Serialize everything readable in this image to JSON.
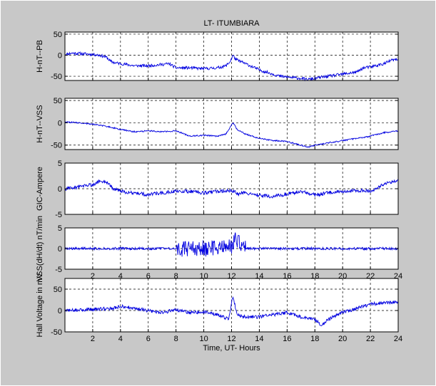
{
  "figure": {
    "background": "#c8c8c8",
    "axes_background": "#ffffff",
    "line_color": "#0000e0"
  },
  "chart_data": [
    {
      "type": "line",
      "title": "LT- ITUMBIARA",
      "ylabel": "H-nT--PB",
      "xlabel": "",
      "xlim": [
        0,
        24
      ],
      "ylim": [
        -60,
        55
      ],
      "yticks": [
        -50,
        0,
        50
      ],
      "xticks": [
        2,
        4,
        6,
        8,
        10,
        12,
        14,
        16,
        18,
        20,
        22,
        24
      ],
      "show_xtick_labels": false,
      "grid": "dashed",
      "noise": 3.5,
      "x": [
        0,
        0.5,
        1,
        1.5,
        2,
        2.5,
        3,
        3.3,
        3.6,
        4,
        5,
        6,
        7,
        7.5,
        8,
        9,
        10,
        11,
        11.6,
        11.9,
        12.1,
        12.3,
        13,
        14,
        15,
        15.5,
        16,
        17,
        17.5,
        18,
        18.5,
        19,
        20,
        21,
        21.5,
        22,
        23,
        23.5,
        24
      ],
      "values": [
        2,
        5,
        4,
        3,
        2,
        0,
        -5,
        -15,
        -18,
        -20,
        -25,
        -25,
        -22,
        -20,
        -30,
        -30,
        -32,
        -30,
        -25,
        -15,
        0,
        -10,
        -20,
        -35,
        -45,
        -50,
        -52,
        -55,
        -58,
        -55,
        -52,
        -50,
        -45,
        -40,
        -30,
        -28,
        -20,
        -12,
        -10
      ]
    },
    {
      "type": "line",
      "title": "",
      "ylabel": "H-nT--VSS",
      "xlabel": "",
      "xlim": [
        0,
        24
      ],
      "ylim": [
        -60,
        55
      ],
      "yticks": [
        -50,
        0,
        50
      ],
      "xticks": [
        2,
        4,
        6,
        8,
        10,
        12,
        14,
        16,
        18,
        20,
        22,
        24
      ],
      "show_xtick_labels": false,
      "grid": "dashed",
      "noise": 1.5,
      "x": [
        0,
        1,
        2,
        3,
        4,
        5,
        6,
        7,
        8,
        9,
        10,
        11,
        11.6,
        12.1,
        12.4,
        13,
        14,
        15,
        16,
        17,
        17.5,
        18,
        19,
        20,
        21,
        22,
        23,
        24
      ],
      "values": [
        2,
        0,
        -3,
        -8,
        -15,
        -20,
        -18,
        -20,
        -18,
        -30,
        -28,
        -30,
        -25,
        0,
        -15,
        -25,
        -35,
        -40,
        -42,
        -50,
        -55,
        -50,
        -45,
        -40,
        -35,
        -30,
        -22,
        -18
      ]
    },
    {
      "type": "line",
      "title": "",
      "ylabel": "GIC-Ampere",
      "xlabel": "",
      "xlim": [
        0,
        24
      ],
      "ylim": [
        -5,
        5
      ],
      "yticks": [
        -5,
        0,
        5
      ],
      "xticks": [
        2,
        4,
        6,
        8,
        10,
        12,
        14,
        16,
        18,
        20,
        22,
        24
      ],
      "show_xtick_labels": false,
      "grid": "dashed",
      "noise": 0.35,
      "x": [
        0,
        1,
        2,
        2.5,
        3,
        3.5,
        4,
        5,
        6,
        7,
        8,
        9,
        10,
        11,
        12,
        12.5,
        13,
        14,
        15,
        16,
        17,
        18,
        19,
        20,
        21,
        22,
        23,
        24
      ],
      "values": [
        0,
        0.3,
        0.8,
        1.5,
        1.2,
        0,
        -0.5,
        -0.8,
        -1.2,
        -0.8,
        -0.5,
        -0.5,
        -0.8,
        -0.5,
        -0.3,
        -1,
        -0.8,
        -1.3,
        -1.5,
        -1,
        -0.5,
        -1.2,
        -0.8,
        -0.5,
        -0.3,
        -0.5,
        1,
        1.5
      ]
    },
    {
      "type": "line",
      "title": "",
      "ylabel": "VSS(dH/dt) nT/min",
      "xlabel": "",
      "xlim": [
        0,
        24
      ],
      "ylim": [
        -5,
        5
      ],
      "yticks": [
        -5,
        0,
        5
      ],
      "xticks": [
        2,
        4,
        6,
        8,
        10,
        12,
        14,
        16,
        18,
        20,
        22,
        24
      ],
      "xtick_labels": [
        "2",
        "4",
        "6",
        "8",
        "10",
        "12",
        "14",
        "16",
        "18",
        "20",
        "22",
        "24"
      ],
      "show_xtick_labels": true,
      "grid": "dashed",
      "noise": 0.3,
      "burst": {
        "from": 8,
        "to": 13,
        "amplitude": 2.0
      },
      "x": [
        0,
        4,
        8,
        10,
        12,
        12.2,
        13,
        16,
        20,
        24
      ],
      "values": [
        0,
        0,
        0,
        0,
        0.5,
        2.2,
        0,
        0,
        0,
        0
      ]
    },
    {
      "type": "line",
      "title": "",
      "ylabel": "Hall Voltage in mV",
      "xlabel": "Time, UT- Hours",
      "xlim": [
        0,
        24
      ],
      "ylim": [
        -50,
        75
      ],
      "yticks": [
        -50,
        0,
        50
      ],
      "xticks": [
        2,
        4,
        6,
        8,
        10,
        12,
        14,
        16,
        18,
        20,
        22,
        24
      ],
      "xtick_labels": [
        "2",
        "4",
        "6",
        "8",
        "10",
        "12",
        "14",
        "16",
        "18",
        "20",
        "22",
        "24"
      ],
      "show_xtick_labels": true,
      "grid": "dashed",
      "noise": 4,
      "x": [
        0,
        2,
        3.5,
        4,
        5,
        6,
        7,
        8,
        9,
        10,
        11,
        11.8,
        12.1,
        12.4,
        13,
        14,
        15,
        16,
        17,
        18,
        18.5,
        19,
        20,
        21,
        22,
        23,
        24
      ],
      "values": [
        0,
        3,
        5,
        10,
        5,
        0,
        -5,
        2,
        -5,
        -3,
        -10,
        -20,
        35,
        -10,
        -15,
        -15,
        -10,
        -5,
        -15,
        -20,
        -35,
        -20,
        -5,
        5,
        15,
        18,
        20
      ]
    }
  ]
}
